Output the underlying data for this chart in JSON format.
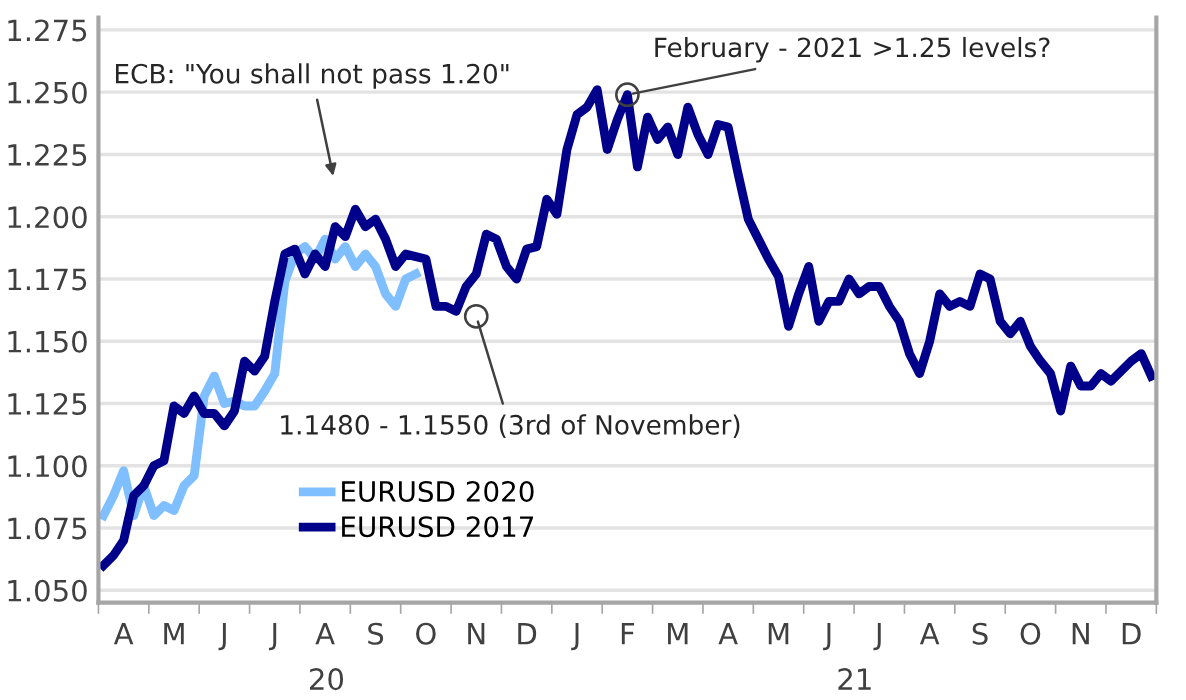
{
  "chart_data": {
    "type": "line",
    "ylim": [
      1.045,
      1.28
    ],
    "yticks": [
      {
        "value": 1.05,
        "label": "1.050"
      },
      {
        "value": 1.075,
        "label": "1.075"
      },
      {
        "value": 1.1,
        "label": "1.100"
      },
      {
        "value": 1.125,
        "label": "1.125"
      },
      {
        "value": 1.15,
        "label": "1.150"
      },
      {
        "value": 1.175,
        "label": "1.175"
      },
      {
        "value": 1.2,
        "label": "1.200"
      },
      {
        "value": 1.225,
        "label": "1.225"
      },
      {
        "value": 1.25,
        "label": "1.250"
      },
      {
        "value": 1.275,
        "label": "1.275"
      }
    ],
    "categories": [
      null,
      null,
      "A",
      null,
      null,
      null,
      null,
      "M",
      null,
      null,
      null,
      null,
      "J",
      null,
      null,
      null,
      null,
      "J",
      null,
      null,
      null,
      null,
      "A",
      null,
      null,
      null,
      null,
      "S",
      null,
      null,
      null,
      null,
      "O",
      null,
      null,
      null,
      null,
      "N",
      null,
      null,
      null,
      null,
      "D",
      null,
      null,
      null,
      null,
      "J",
      null,
      null,
      null,
      null,
      "F",
      null,
      null,
      null,
      null,
      "M",
      null,
      null,
      null,
      null,
      "A",
      null,
      null,
      null,
      null,
      "M",
      null,
      null,
      null,
      null,
      "J",
      null,
      null,
      null,
      null,
      "J",
      null,
      null,
      null,
      null,
      "A",
      null,
      null,
      null,
      null,
      "S",
      null,
      null,
      null,
      null,
      "O",
      null,
      null,
      null,
      null,
      "N",
      null,
      null,
      null,
      null,
      "D",
      null,
      null
    ],
    "grid": "y",
    "legend": "bottom left",
    "marker": "none",
    "line_style": "solid",
    "series": [
      {
        "name": "EURUSD 2020",
        "color": "#7fbfff",
        "values": [
          1.08,
          1.088,
          1.098,
          1.08,
          1.092,
          1.08,
          1.084,
          1.082,
          1.092,
          1.096,
          1.128,
          1.136,
          1.125,
          1.126,
          1.124,
          1.124,
          1.13,
          1.137,
          1.174,
          1.185,
          1.188,
          1.183,
          1.191,
          1.183,
          1.188,
          1.18,
          1.185,
          1.18,
          1.169,
          1.164,
          1.175,
          1.177,
          null,
          null,
          null,
          null,
          null,
          null,
          null,
          null,
          null,
          null,
          null,
          null,
          null,
          null,
          null,
          null,
          null,
          null,
          null,
          null,
          null,
          null,
          null,
          null,
          null,
          null,
          null,
          null,
          null,
          null,
          null,
          null,
          null,
          null,
          null,
          null,
          null,
          null,
          null,
          null,
          null,
          null,
          null,
          null,
          null,
          null,
          null,
          null,
          null,
          null,
          null,
          null,
          null,
          null,
          null,
          null,
          null,
          null,
          null,
          null,
          null,
          null,
          null,
          null,
          null,
          null,
          null,
          null,
          null,
          null,
          null,
          null,
          null
        ]
      },
      {
        "name": "EURUSD 2017",
        "color": "#00008b",
        "values": [
          1.06,
          1.064,
          1.07,
          1.088,
          1.092,
          1.1,
          1.102,
          1.124,
          1.121,
          1.128,
          1.121,
          1.121,
          1.116,
          1.122,
          1.142,
          1.138,
          1.144,
          1.166,
          1.185,
          1.187,
          1.177,
          1.185,
          1.18,
          1.196,
          1.192,
          1.203,
          1.196,
          1.199,
          1.191,
          1.18,
          1.185,
          1.184,
          1.183,
          1.164,
          1.164,
          1.162,
          1.172,
          1.177,
          1.193,
          1.191,
          1.18,
          1.175,
          1.187,
          1.188,
          1.207,
          1.201,
          1.227,
          1.241,
          1.244,
          1.251,
          1.227,
          1.239,
          1.249,
          1.22,
          1.24,
          1.231,
          1.236,
          1.225,
          1.244,
          1.233,
          1.225,
          1.237,
          1.236,
          1.217,
          1.199,
          1.191,
          1.183,
          1.176,
          1.156,
          1.169,
          1.18,
          1.158,
          1.166,
          1.166,
          1.175,
          1.169,
          1.172,
          1.172,
          1.164,
          1.158,
          1.145,
          1.137,
          1.15,
          1.169,
          1.164,
          1.166,
          1.164,
          1.177,
          1.175,
          1.158,
          1.153,
          1.158,
          1.148,
          1.142,
          1.137,
          1.122,
          1.14,
          1.132,
          1.132,
          1.137,
          1.134,
          1.138,
          1.142,
          1.145,
          1.136
        ]
      }
    ],
    "annotations": [
      "ECB: \"You shall not pass 1.20\"",
      {
        "text": "February - 2021 >1.25 levels?",
        "x": "F",
        "y": 1.249
      },
      {
        "text": "1.1480 - 1.1550 (3rd of November)",
        "x": "N",
        "y": 1.16
      },
      "20",
      "21"
    ]
  }
}
